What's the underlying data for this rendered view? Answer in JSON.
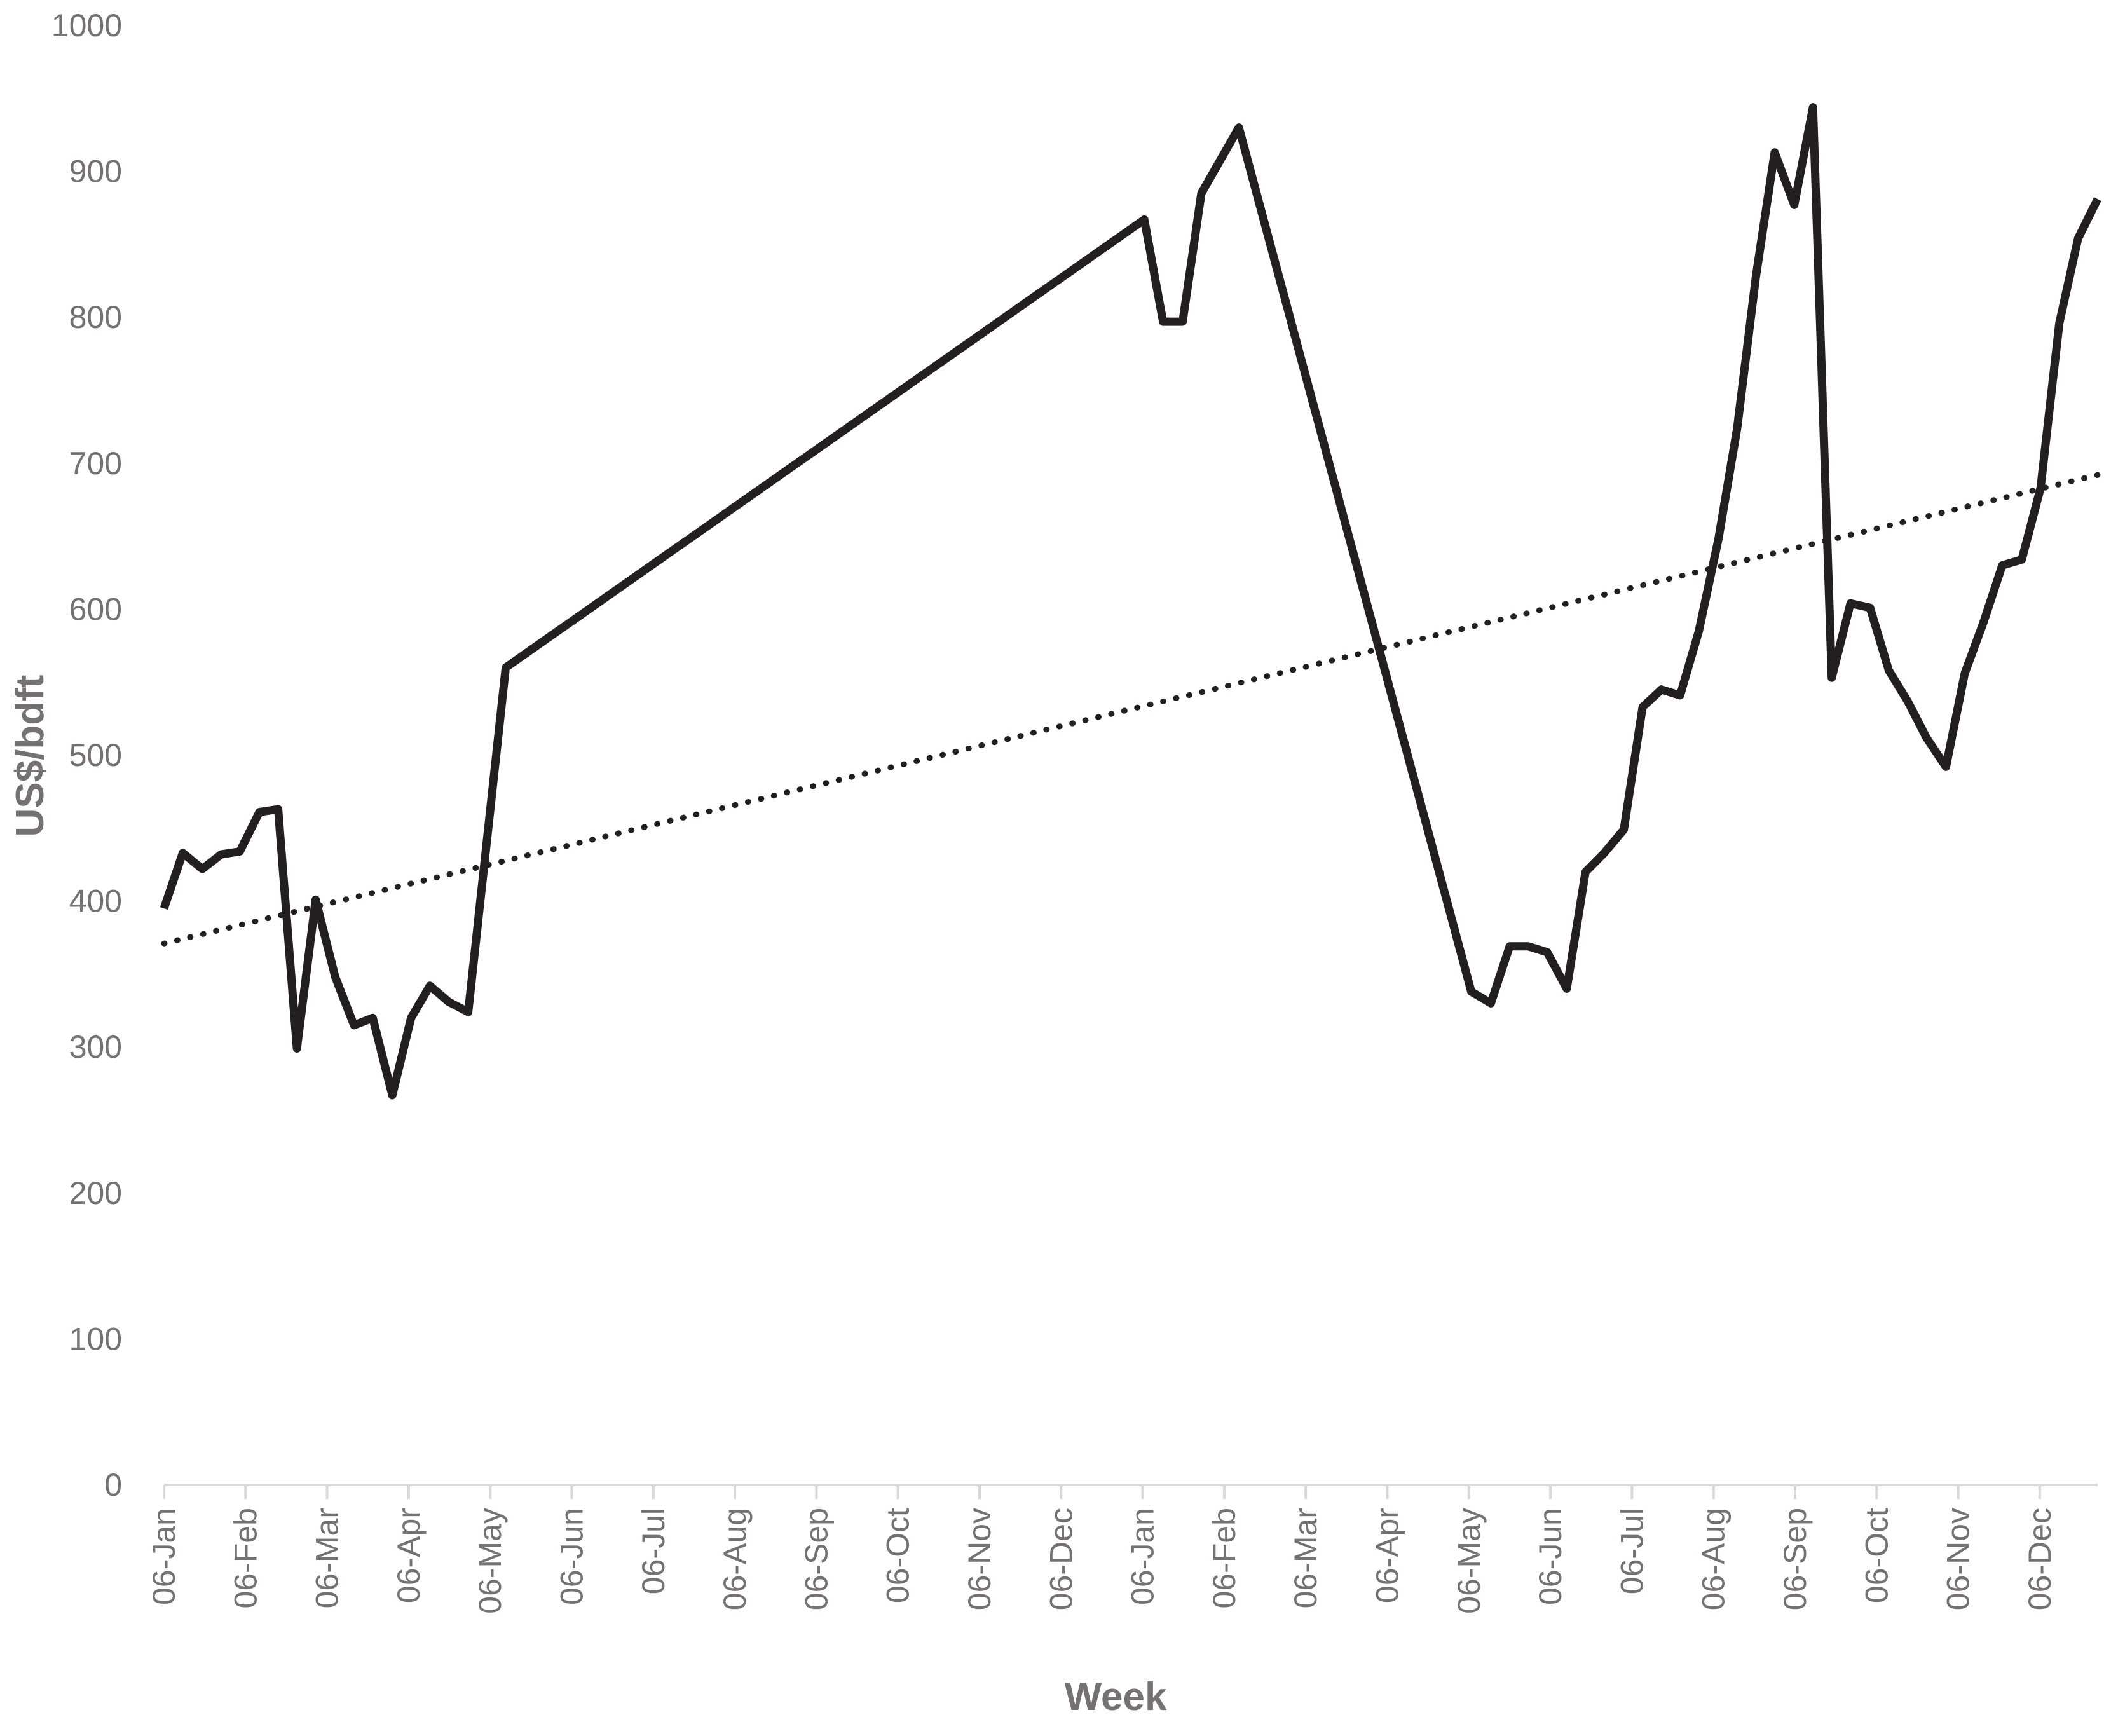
{
  "chart_data": {
    "type": "line",
    "title": "",
    "xlabel": "Week",
    "ylabel": "US$/bdft",
    "ylim": [
      0,
      1000
    ],
    "yticks": [
      0,
      100,
      200,
      300,
      400,
      500,
      600,
      700,
      800,
      900,
      1000
    ],
    "xticks": [
      "06-Jan",
      "06-Feb",
      "06-Mar",
      "06-Apr",
      "06-May",
      "06-Jun",
      "06-Jul",
      "06-Aug",
      "06-Sep",
      "06-Oct",
      "06-Nov",
      "06-Dec",
      "06-Jan",
      "06-Feb",
      "06-Mar",
      "06-Apr",
      "06-May",
      "06-Jun",
      "06-Jul",
      "06-Aug",
      "06-Sep",
      "06-Oct",
      "06-Nov",
      "06-Dec"
    ],
    "grid": false,
    "legend": "none",
    "colors": {
      "line": "#231f20",
      "trend": "#231f20",
      "axis": "#d9d9d9",
      "text": "#767171"
    },
    "series": [
      {
        "style": "solid",
        "x": [
          0,
          0.23,
          0.47,
          0.7,
          0.93,
          1.17,
          1.4,
          1.63,
          1.86,
          2.1,
          2.33,
          2.56,
          2.8,
          3.03,
          3.26,
          3.49,
          3.73,
          4.19,
          12.02,
          12.25,
          12.49,
          12.72,
          13.18,
          16.03,
          16.27,
          16.5,
          16.73,
          16.96,
          17.2,
          17.43,
          17.66,
          17.9,
          18.13,
          18.36,
          18.59,
          18.82,
          19.06,
          19.29,
          19.52,
          19.75,
          19.99,
          20.22,
          20.45,
          20.68,
          20.92,
          21.15,
          21.38,
          21.61,
          21.85,
          22.08,
          22.31,
          22.54,
          22.78,
          23.01,
          23.24,
          23.47,
          23.71
        ],
        "values": [
          395,
          433,
          422,
          432,
          434,
          461,
          463,
          299,
          401,
          348,
          315,
          320,
          267,
          320,
          342,
          331,
          324,
          560,
          867,
          797,
          797,
          885,
          930,
          338,
          330,
          369,
          369,
          365,
          340,
          420,
          433,
          449,
          533,
          545,
          541,
          585,
          648,
          724,
          828,
          913,
          877,
          944,
          553,
          604,
          601,
          558,
          537,
          512,
          492,
          556,
          591,
          630,
          634,
          683,
          796,
          854,
          881
        ]
      },
      {
        "style": "dotted",
        "x": [
          0,
          23.71
        ],
        "values": [
          371,
          692
        ]
      }
    ]
  }
}
